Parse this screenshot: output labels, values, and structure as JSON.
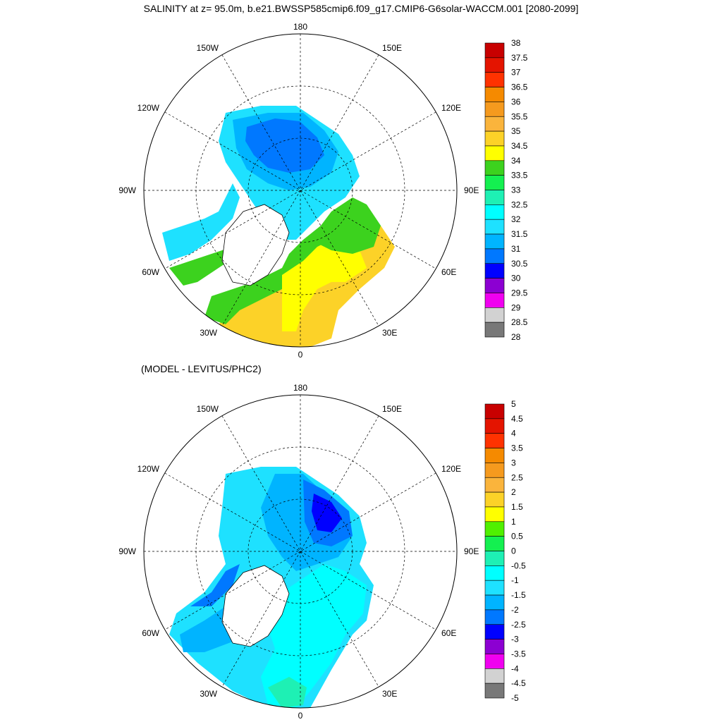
{
  "title": "SALINITY at z=  95.0m, b.e21.BWSSP585cmip6.f09_g17.CMIP6-G6solar-WACCM.001 [2080-2099]",
  "subtitle": "(MODEL - LEVITUS/PHC2)",
  "longitude_labels": {
    "top": "180",
    "bottom": "0",
    "left": "90W",
    "right": "90E",
    "upper_left": "150W",
    "upper_right": "150E",
    "mid_upper_left": "120W",
    "mid_upper_right": "120E",
    "mid_lower_left": "60W",
    "mid_lower_right": "60E",
    "lower_left": "30W",
    "lower_right": "30E"
  },
  "panel1": {
    "colorbar_labels": [
      "38",
      "37.5",
      "37",
      "36.5",
      "36",
      "35.5",
      "35",
      "34.5",
      "34",
      "33.5",
      "33",
      "32.5",
      "32",
      "31.5",
      "31",
      "30.5",
      "30",
      "29.5",
      "29",
      "28.5",
      "28"
    ],
    "colorbar_colors": [
      "#c80000",
      "#e41400",
      "#ff3200",
      "#f58a00",
      "#f59a1e",
      "#fab43c",
      "#fcd228",
      "#ffff00",
      "#3cd21e",
      "#14f050",
      "#1ef0b4",
      "#00ffff",
      "#1ee1ff",
      "#00b4ff",
      "#0078ff",
      "#0000ff",
      "#8c00d2",
      "#f000f0",
      "#d2d2d2",
      "#787878"
    ]
  },
  "panel2": {
    "colorbar_labels": [
      "5",
      "4.5",
      "4",
      "3.5",
      "3",
      "2.5",
      "2",
      "1.5",
      "1",
      "0.5",
      "0",
      "-0.5",
      "-1",
      "-1.5",
      "-2",
      "-2.5",
      "-3",
      "-3.5",
      "-4",
      "-4.5",
      "-5"
    ],
    "colorbar_colors": [
      "#c80000",
      "#e41400",
      "#ff3200",
      "#f58a00",
      "#f59a1e",
      "#fab43c",
      "#fcd228",
      "#ffff00",
      "#50f000",
      "#14f050",
      "#1ef0b4",
      "#00ffff",
      "#1ee1ff",
      "#00b4ff",
      "#0078ff",
      "#0000ff",
      "#8c00d2",
      "#f000f0",
      "#d2d2d2",
      "#787878"
    ]
  }
}
